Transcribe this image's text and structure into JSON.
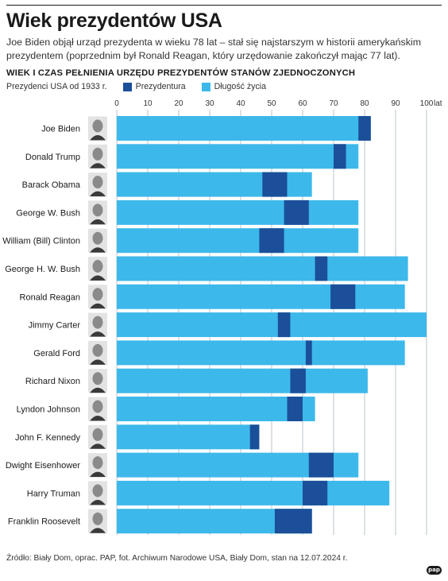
{
  "header": {
    "title": "Wiek prezydentów USA",
    "subtitle": "Joe Biden objął urząd prezydenta w wieku 78 lat – stał się najstarszym w historii amerykańskim prezydentem (poprzednim był Ronald Reagan, który urzędowanie zakończył mając 77 lat)."
  },
  "colors": {
    "life": "#3db8ea",
    "presidency": "#1b4f99",
    "grid": "#a8b4bd",
    "photo_bg": "#e3e3e3"
  },
  "chart_data": {
    "type": "bar",
    "orientation": "horizontal",
    "title": "WIEK I CZAS PEŁNIENIA URZĘDU PREZYDENTÓW STANÓW ZJEDNOCZONYCH",
    "category_label": "Prezydenci USA od 1933 r.",
    "axis_unit": "lat",
    "xlim": [
      0,
      100
    ],
    "xticks": [
      0,
      10,
      20,
      30,
      40,
      50,
      60,
      70,
      80,
      90,
      100
    ],
    "grid": true,
    "legend": [
      {
        "name": "Prezydentura",
        "color": "#1b4f99"
      },
      {
        "name": "Długość życia",
        "color": "#3db8ea"
      }
    ],
    "categories": [
      "Joe Biden",
      "Donald Trump",
      "Barack Obama",
      "George W. Bush",
      "William (Bill) Clinton",
      "George H. W. Bush",
      "Ronald Reagan",
      "Jimmy Carter",
      "Gerald Ford",
      "Richard Nixon",
      "Lyndon Johnson",
      "John F. Kennedy",
      "Dwight Eisenhower",
      "Harry Truman",
      "Franklin Roosevelt"
    ],
    "series": [
      {
        "name": "Prezydentura",
        "start": [
          78,
          70,
          47,
          54,
          46,
          64,
          69,
          52,
          61,
          56,
          55,
          43,
          62,
          60,
          51
        ],
        "end": [
          82,
          74,
          55,
          62,
          54,
          68,
          77,
          56,
          63,
          61,
          60,
          46,
          70,
          68,
          63
        ]
      },
      {
        "name": "Długość życia",
        "values": [
          82,
          78,
          63,
          78,
          78,
          94,
          93,
          100,
          93,
          81,
          64,
          46,
          78,
          88,
          63
        ]
      }
    ]
  },
  "footer": {
    "source": "Źródło: Biały Dom, oprac. PAP, fot. Archiwum Narodowe USA, Biały Dom, stan na 12.07.2024 r.",
    "logo": "pap"
  }
}
